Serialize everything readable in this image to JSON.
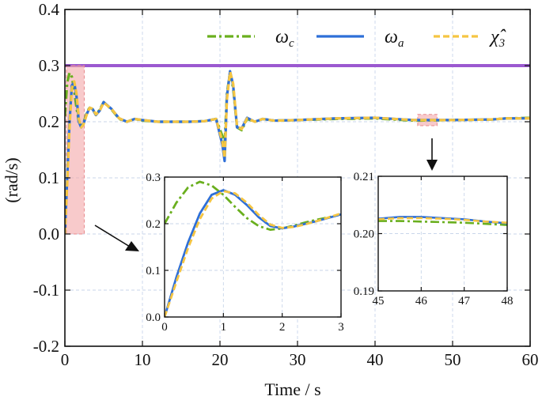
{
  "chart_data": [
    {
      "id": "main",
      "type": "line",
      "title": "",
      "xlabel": "Time / s",
      "ylabel": "(rad/s)",
      "xlim": [
        0,
        60
      ],
      "ylim": [
        -0.2,
        0.4
      ],
      "xticks": [
        0,
        10,
        20,
        30,
        40,
        50,
        60
      ],
      "yticks": [
        -0.2,
        -0.1,
        0.0,
        0.1,
        0.2,
        0.3,
        0.4
      ],
      "xtick_labels": [
        "0",
        "10",
        "20",
        "30",
        "40",
        "50",
        "60"
      ],
      "ytick_labels": [
        "-0.2",
        "-0.1",
        "0.0",
        "0.1",
        "0.2",
        "0.3",
        "0.4"
      ],
      "grid": true,
      "reference_line": {
        "name": "limit",
        "y": 0.3,
        "color": "#9B59D0"
      },
      "highlight_boxes": [
        {
          "name": "zoom-region-1",
          "x": [
            0.2,
            2.5
          ],
          "y": [
            0.0,
            0.3
          ],
          "color": "#F4A7A9"
        },
        {
          "name": "zoom-region-2",
          "x": [
            45.5,
            48.0
          ],
          "y": [
            0.193,
            0.213
          ],
          "color": "#F4A7A9"
        }
      ],
      "series": [
        {
          "name": "omega_c",
          "color": "#6AAF1E",
          "dash": "dashdot",
          "x": [
            0,
            0.3,
            0.6,
            0.9,
            1.2,
            1.5,
            1.8,
            2.1,
            2.4,
            2.8,
            3.2,
            3.6,
            4.0,
            4.5,
            5.0,
            6.0,
            7.0,
            8.0,
            9.0,
            10,
            12,
            14,
            16,
            18,
            19.5,
            20.3,
            20.6,
            20.9,
            21.3,
            21.7,
            22.2,
            22.8,
            23.5,
            24.5,
            25.5,
            27,
            30,
            35,
            40,
            45,
            50,
            55,
            57,
            60
          ],
          "y": [
            0.21,
            0.27,
            0.287,
            0.28,
            0.255,
            0.225,
            0.2,
            0.192,
            0.198,
            0.215,
            0.226,
            0.222,
            0.212,
            0.222,
            0.235,
            0.222,
            0.205,
            0.2,
            0.205,
            0.202,
            0.2,
            0.2,
            0.2,
            0.201,
            0.205,
            0.175,
            0.16,
            0.25,
            0.288,
            0.26,
            0.19,
            0.185,
            0.205,
            0.2,
            0.205,
            0.202,
            0.203,
            0.205,
            0.206,
            0.202,
            0.203,
            0.204,
            0.206,
            0.207
          ]
        },
        {
          "name": "omega_a",
          "color": "#2E6FD8",
          "dash": "solid",
          "x": [
            0,
            0.3,
            0.6,
            0.9,
            1.2,
            1.5,
            1.8,
            2.1,
            2.4,
            2.8,
            3.2,
            3.6,
            4.0,
            4.5,
            5.0,
            6.0,
            7.0,
            8.0,
            9.0,
            10,
            12,
            14,
            16,
            18,
            19.5,
            20.3,
            20.6,
            20.9,
            21.3,
            21.7,
            22.2,
            22.8,
            23.5,
            24.5,
            25.5,
            27,
            30,
            35,
            40,
            45,
            50,
            55,
            57,
            60
          ],
          "y": [
            0.0,
            0.1,
            0.2,
            0.265,
            0.27,
            0.245,
            0.2,
            0.19,
            0.196,
            0.213,
            0.225,
            0.222,
            0.212,
            0.22,
            0.235,
            0.223,
            0.206,
            0.2,
            0.205,
            0.203,
            0.2,
            0.2,
            0.2,
            0.201,
            0.205,
            0.16,
            0.13,
            0.245,
            0.29,
            0.265,
            0.19,
            0.188,
            0.207,
            0.2,
            0.205,
            0.202,
            0.203,
            0.206,
            0.207,
            0.203,
            0.203,
            0.204,
            0.206,
            0.206
          ]
        },
        {
          "name": "chi_hat_3",
          "color": "#F5C542",
          "dash": "dashed",
          "x": [
            0,
            0.3,
            0.6,
            0.9,
            1.2,
            1.5,
            1.8,
            2.1,
            2.4,
            2.8,
            3.2,
            3.6,
            4.0,
            4.5,
            5.0,
            6.0,
            7.0,
            8.0,
            9.0,
            10,
            12,
            14,
            16,
            18,
            19.5,
            20.3,
            20.6,
            20.9,
            21.3,
            21.7,
            22.2,
            22.8,
            23.5,
            24.5,
            25.5,
            27,
            30,
            35,
            40,
            45,
            50,
            55,
            57,
            60
          ],
          "y": [
            0.0,
            0.09,
            0.19,
            0.26,
            0.272,
            0.25,
            0.205,
            0.19,
            0.195,
            0.212,
            0.225,
            0.223,
            0.213,
            0.22,
            0.234,
            0.223,
            0.206,
            0.2,
            0.205,
            0.203,
            0.2,
            0.2,
            0.2,
            0.201,
            0.205,
            0.165,
            0.135,
            0.24,
            0.289,
            0.268,
            0.192,
            0.187,
            0.206,
            0.2,
            0.205,
            0.202,
            0.203,
            0.206,
            0.207,
            0.203,
            0.203,
            0.204,
            0.206,
            0.206
          ]
        }
      ]
    },
    {
      "id": "inset1",
      "type": "line",
      "xlim": [
        0,
        3
      ],
      "ylim": [
        0.0,
        0.3
      ],
      "xticks": [
        0,
        1,
        2,
        3
      ],
      "yticks": [
        0.0,
        0.1,
        0.2,
        0.3
      ],
      "xtick_labels": [
        "0",
        "1",
        "2",
        "3"
      ],
      "ytick_labels": [
        "0.0",
        "0.1",
        "0.2",
        "0.3"
      ],
      "grid": true,
      "series": [
        {
          "name": "omega_c",
          "color": "#6AAF1E",
          "dash": "dashdot",
          "x": [
            0,
            0.2,
            0.4,
            0.6,
            0.8,
            1.0,
            1.2,
            1.4,
            1.6,
            1.8,
            2.0,
            2.2,
            2.4,
            2.6,
            2.8,
            3.0
          ],
          "y": [
            0.2,
            0.245,
            0.278,
            0.29,
            0.282,
            0.262,
            0.236,
            0.212,
            0.195,
            0.187,
            0.19,
            0.196,
            0.203,
            0.209,
            0.214,
            0.22
          ]
        },
        {
          "name": "omega_a",
          "color": "#2E6FD8",
          "dash": "solid",
          "x": [
            0,
            0.2,
            0.4,
            0.6,
            0.8,
            1.0,
            1.2,
            1.4,
            1.6,
            1.8,
            2.0,
            2.2,
            2.4,
            2.6,
            2.8,
            3.0
          ],
          "y": [
            0.0,
            0.085,
            0.16,
            0.222,
            0.262,
            0.272,
            0.262,
            0.24,
            0.214,
            0.195,
            0.19,
            0.194,
            0.2,
            0.206,
            0.213,
            0.22
          ]
        },
        {
          "name": "chi_hat_3",
          "color": "#F5C542",
          "dash": "dashed",
          "x": [
            0,
            0.2,
            0.4,
            0.6,
            0.8,
            1.0,
            1.2,
            1.4,
            1.6,
            1.8,
            2.0,
            2.2,
            2.4,
            2.6,
            2.8,
            3.0
          ],
          "y": [
            0.0,
            0.075,
            0.148,
            0.21,
            0.254,
            0.27,
            0.265,
            0.245,
            0.219,
            0.198,
            0.191,
            0.193,
            0.199,
            0.206,
            0.214,
            0.222
          ]
        }
      ]
    },
    {
      "id": "inset2",
      "type": "line",
      "xlim": [
        45,
        48
      ],
      "ylim": [
        0.19,
        0.21
      ],
      "xticks": [
        45,
        46,
        47,
        48
      ],
      "yticks": [
        0.19,
        0.2,
        0.21
      ],
      "xtick_labels": [
        "45",
        "46",
        "47",
        "48"
      ],
      "ytick_labels": [
        "0.19",
        "0.20",
        "0.21"
      ],
      "grid": true,
      "series": [
        {
          "name": "omega_c",
          "color": "#6AAF1E",
          "dash": "dashdot",
          "x": [
            45,
            45.5,
            46,
            46.5,
            47,
            47.5,
            48
          ],
          "y": [
            0.2022,
            0.2022,
            0.2021,
            0.202,
            0.2019,
            0.2017,
            0.2015
          ]
        },
        {
          "name": "omega_a",
          "color": "#2E6FD8",
          "dash": "solid",
          "x": [
            45,
            45.5,
            46,
            46.5,
            47,
            47.5,
            48
          ],
          "y": [
            0.2026,
            0.2029,
            0.2029,
            0.2027,
            0.2025,
            0.2021,
            0.2018
          ]
        },
        {
          "name": "chi_hat_3",
          "color": "#F5C542",
          "dash": "dashed",
          "x": [
            45,
            45.5,
            46,
            46.5,
            47,
            47.5,
            48
          ],
          "y": [
            0.2025,
            0.2027,
            0.2027,
            0.2026,
            0.2024,
            0.2021,
            0.2019
          ]
        }
      ]
    }
  ],
  "legend": {
    "placement": "top-right",
    "entries": [
      {
        "name": "omega_c",
        "symbol": "ω",
        "subscript": "c",
        "color": "#6AAF1E",
        "dash": "dashdot"
      },
      {
        "name": "omega_a",
        "symbol": "ω",
        "subscript": "a",
        "color": "#2E6FD8",
        "dash": "solid"
      },
      {
        "name": "chi_hat_3",
        "symbol": "χ̂",
        "subscript": "3",
        "color": "#F5C542",
        "dash": "dashed"
      }
    ]
  }
}
